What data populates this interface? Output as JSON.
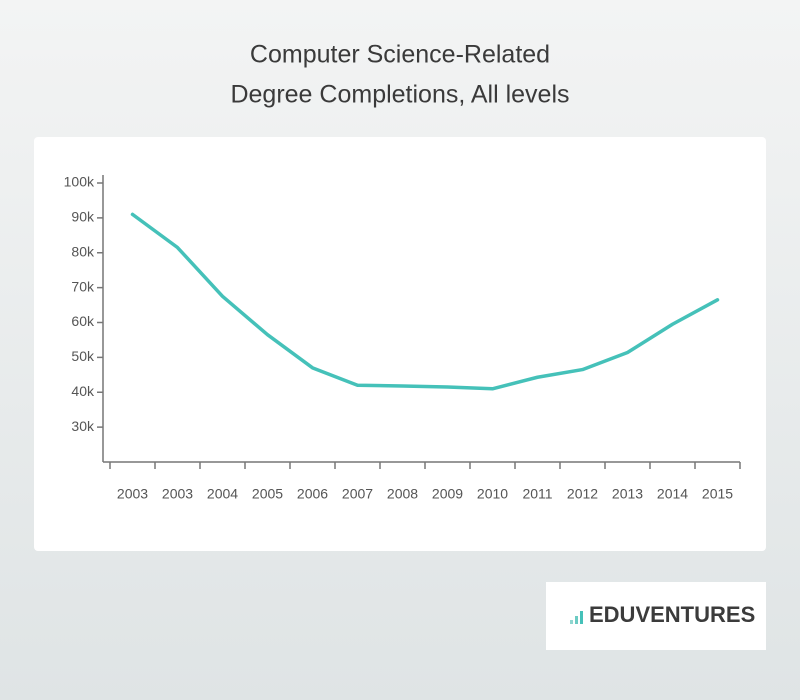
{
  "chart_data": {
    "type": "line",
    "title": [
      "Computer Science-Related",
      "Degree Completions, All levels"
    ],
    "categories": [
      "2003",
      "2003",
      "2004",
      "2005",
      "2006",
      "2007",
      "2008",
      "2009",
      "2010",
      "2011",
      "2012",
      "2013",
      "2014",
      "2015"
    ],
    "series": [
      {
        "color": "#45c1b9",
        "values": [
          91000,
          81500,
          67500,
          56500,
          47000,
          42000,
          41800,
          41500,
          41000,
          44300,
          46500,
          51400,
          59500,
          66500
        ]
      }
    ],
    "ylim": [
      20000,
      100000
    ],
    "yticks": [
      {
        "value": 30000,
        "label": "30k"
      },
      {
        "value": 40000,
        "label": "40k"
      },
      {
        "value": 50000,
        "label": "50k"
      },
      {
        "value": 60000,
        "label": "60k"
      },
      {
        "value": 70000,
        "label": "70k"
      },
      {
        "value": 80000,
        "label": "80k"
      },
      {
        "value": 90000,
        "label": "90k"
      },
      {
        "value": 100000,
        "label": "100k"
      }
    ],
    "grid": false
  },
  "logo": "EDUVENTURES"
}
